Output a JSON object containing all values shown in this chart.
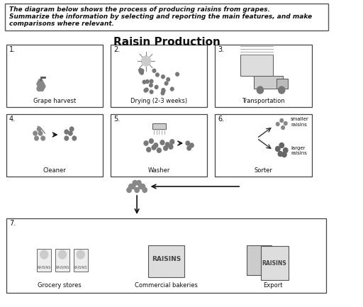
{
  "title": "Raisin Production",
  "instruction_line1": "The diagram below shows the process of producing raisins from grapes.",
  "instruction_line2": "Summarize the information by selecting and reporting the main features, and make",
  "instruction_line3": "comparisons where relevant.",
  "steps": [
    {
      "num": "1.",
      "label": "Grape harvest",
      "row": 0,
      "col": 0
    },
    {
      "num": "2.",
      "label": "Drying (2-3 weeks)",
      "row": 0,
      "col": 1
    },
    {
      "num": "3.",
      "label": "Transportation",
      "row": 0,
      "col": 2
    },
    {
      "num": "4.",
      "label": "Cleaner",
      "row": 1,
      "col": 0
    },
    {
      "num": "5.",
      "label": "Washer",
      "row": 1,
      "col": 1
    },
    {
      "num": "6.",
      "label": "Sorter",
      "row": 1,
      "col": 2
    },
    {
      "num": "7.",
      "label": "",
      "row": 2,
      "col": 0
    }
  ],
  "step7_labels": [
    "Grocery stores",
    "Commercial bakeries",
    "Export"
  ],
  "sorter_labels": [
    "smaller\nraisins",
    "larger\nraisins"
  ],
  "bg_color": "#ffffff",
  "box_color": "#ffffff",
  "box_edge_color": "#333333",
  "text_color": "#111111",
  "arrow_color": "#111111"
}
